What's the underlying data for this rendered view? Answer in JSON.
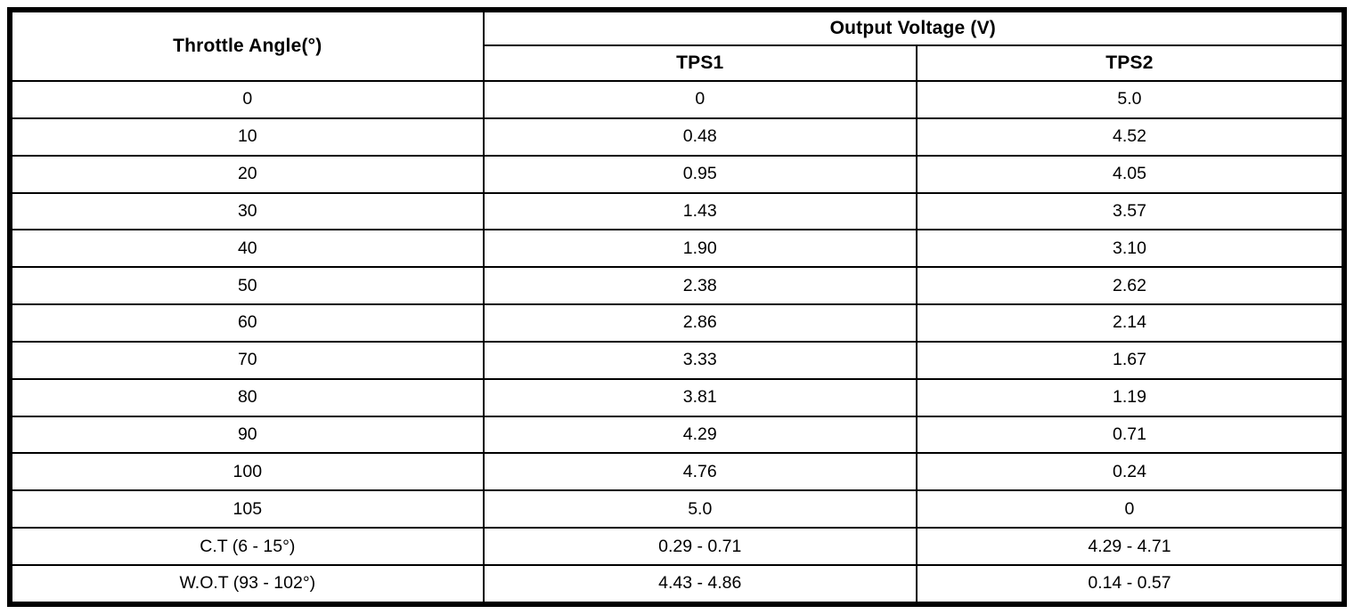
{
  "colors": {
    "border": "#000000",
    "background": "#ffffff",
    "text": "#000000"
  },
  "table": {
    "angle_header": "Throttle Angle(°)",
    "voltage_group_header": "Output Voltage (V)",
    "tps1_header": "TPS1",
    "tps2_header": "TPS2",
    "rows": [
      {
        "angle": "0",
        "tps1": "0",
        "tps2": "5.0"
      },
      {
        "angle": "10",
        "tps1": "0.48",
        "tps2": "4.52"
      },
      {
        "angle": "20",
        "tps1": "0.95",
        "tps2": "4.05"
      },
      {
        "angle": "30",
        "tps1": "1.43",
        "tps2": "3.57"
      },
      {
        "angle": "40",
        "tps1": "1.90",
        "tps2": "3.10"
      },
      {
        "angle": "50",
        "tps1": "2.38",
        "tps2": "2.62"
      },
      {
        "angle": "60",
        "tps1": "2.86",
        "tps2": "2.14"
      },
      {
        "angle": "70",
        "tps1": "3.33",
        "tps2": "1.67"
      },
      {
        "angle": "80",
        "tps1": "3.81",
        "tps2": "1.19"
      },
      {
        "angle": "90",
        "tps1": "4.29",
        "tps2": "0.71"
      },
      {
        "angle": "100",
        "tps1": "4.76",
        "tps2": "0.24"
      },
      {
        "angle": "105",
        "tps1": "5.0",
        "tps2": "0"
      },
      {
        "angle": "C.T (6 - 15°)",
        "tps1": "0.29 - 0.71",
        "tps2": "4.29 - 4.71"
      },
      {
        "angle": "W.O.T (93 - 102°)",
        "tps1": "4.43 - 4.86",
        "tps2": "0.14 - 0.57"
      }
    ]
  }
}
